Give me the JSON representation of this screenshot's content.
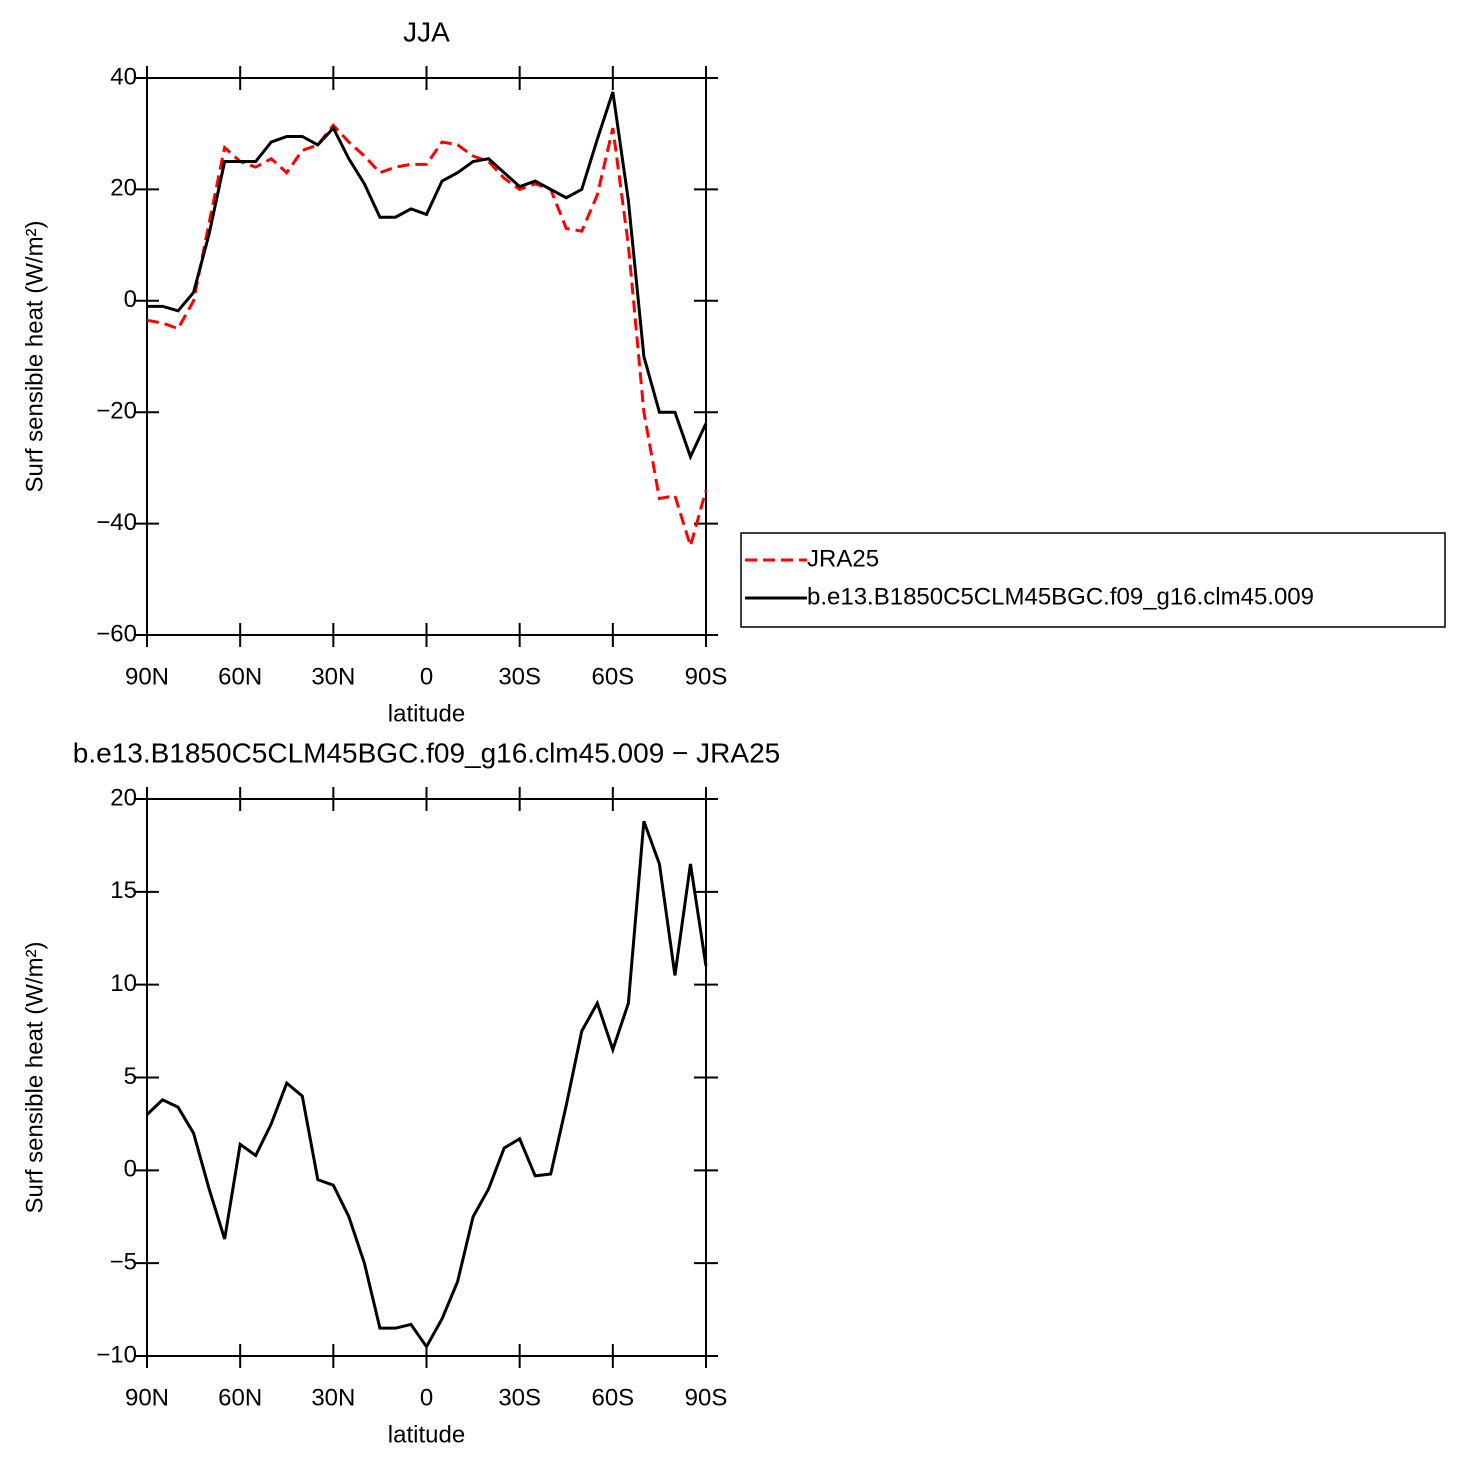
{
  "chart_data": [
    {
      "type": "line",
      "title": "JJA",
      "xlabel": "latitude",
      "ylabel": "Surf sensible heat (W/m²)",
      "x": [
        90,
        85,
        80,
        75,
        70,
        65,
        60,
        55,
        50,
        45,
        40,
        35,
        30,
        25,
        20,
        15,
        10,
        5,
        0,
        -5,
        -10,
        -15,
        -20,
        -25,
        -30,
        -35,
        -40,
        -45,
        -50,
        -55,
        -60,
        -65,
        -70,
        -75,
        -80,
        -85,
        -90
      ],
      "series": [
        {
          "name": "JRA25",
          "color": "#ff0000",
          "dash": true,
          "values": [
            -3.5,
            -4,
            -5,
            0,
            14,
            27.5,
            25,
            24,
            25.5,
            23,
            27,
            28,
            31.5,
            28.5,
            26,
            23,
            24,
            24.5,
            24.5,
            28.5,
            28,
            26,
            25,
            22,
            20,
            21,
            20,
            13,
            12.5,
            19,
            31,
            10,
            -20,
            -35.5,
            -35,
            -44,
            -34
          ]
        },
        {
          "name": "b.e13.B1850C5CLM45BGC.f09_g16.clm45.009",
          "color": "#000000",
          "dash": false,
          "values": [
            -1,
            -1,
            -1.8,
            1.5,
            12,
            25,
            25,
            25,
            28.5,
            29.5,
            29.5,
            28,
            31,
            25.5,
            21,
            15,
            15,
            16.5,
            15.5,
            21.5,
            23,
            25,
            25.5,
            23,
            20.5,
            21.5,
            20,
            18.5,
            20,
            29,
            37.5,
            18,
            -10,
            -20,
            -20,
            -28,
            -22
          ]
        }
      ],
      "xlim": [
        90,
        -90
      ],
      "ylim": [
        -60,
        40
      ],
      "xticks": [
        {
          "value": 90,
          "label": "90N"
        },
        {
          "value": 60,
          "label": "60N"
        },
        {
          "value": 30,
          "label": "30N"
        },
        0,
        {
          "value": -30,
          "label": "30S"
        },
        {
          "value": -60,
          "label": "60S"
        },
        {
          "value": -90,
          "label": "90S"
        }
      ],
      "yticks": [
        {
          "value": -60,
          "label": "−60"
        },
        {
          "value": -40,
          "label": "−40"
        },
        {
          "value": -20,
          "label": "−20"
        },
        0,
        20,
        40
      ],
      "legend": "outside-right"
    },
    {
      "type": "line",
      "title": "b.e13.B1850C5CLM45BGC.f09_g16.clm45.009 − JRA25",
      "xlabel": "latitude",
      "ylabel": "Surf sensible heat (W/m²)",
      "x": [
        90,
        85,
        80,
        75,
        70,
        65,
        60,
        55,
        50,
        45,
        40,
        35,
        30,
        25,
        20,
        15,
        10,
        5,
        0,
        -5,
        -10,
        -15,
        -20,
        -25,
        -30,
        -35,
        -40,
        -45,
        -50,
        -55,
        -60,
        -65,
        -70,
        -75,
        -80,
        -85,
        -90
      ],
      "series": [
        {
          "color": "#000000",
          "dash": false,
          "values": [
            3,
            3.8,
            3.4,
            2,
            -1,
            -3.7,
            1.4,
            0.8,
            2.5,
            4.7,
            4,
            -0.5,
            -0.8,
            -2.5,
            -5,
            -8.5,
            -8.5,
            -8.3,
            -9.5,
            -8,
            -6,
            -2.5,
            -1,
            1.2,
            1.7,
            -0.3,
            -0.2,
            3.5,
            7.5,
            9,
            6.5,
            9,
            18.8,
            16.5,
            10.5,
            16.5,
            11
          ]
        }
      ],
      "xlim": [
        90,
        -90
      ],
      "ylim": [
        -10,
        20
      ],
      "xticks": [
        {
          "value": 90,
          "label": "90N"
        },
        {
          "value": 60,
          "label": "60N"
        },
        {
          "value": 30,
          "label": "30N"
        },
        0,
        {
          "value": -30,
          "label": "30S"
        },
        {
          "value": -60,
          "label": "60S"
        },
        {
          "value": -90,
          "label": "90S"
        }
      ],
      "yticks": [
        {
          "value": -10,
          "label": "−10"
        },
        {
          "value": -5,
          "label": "−5"
        },
        0,
        5,
        10,
        15,
        20
      ]
    }
  ]
}
